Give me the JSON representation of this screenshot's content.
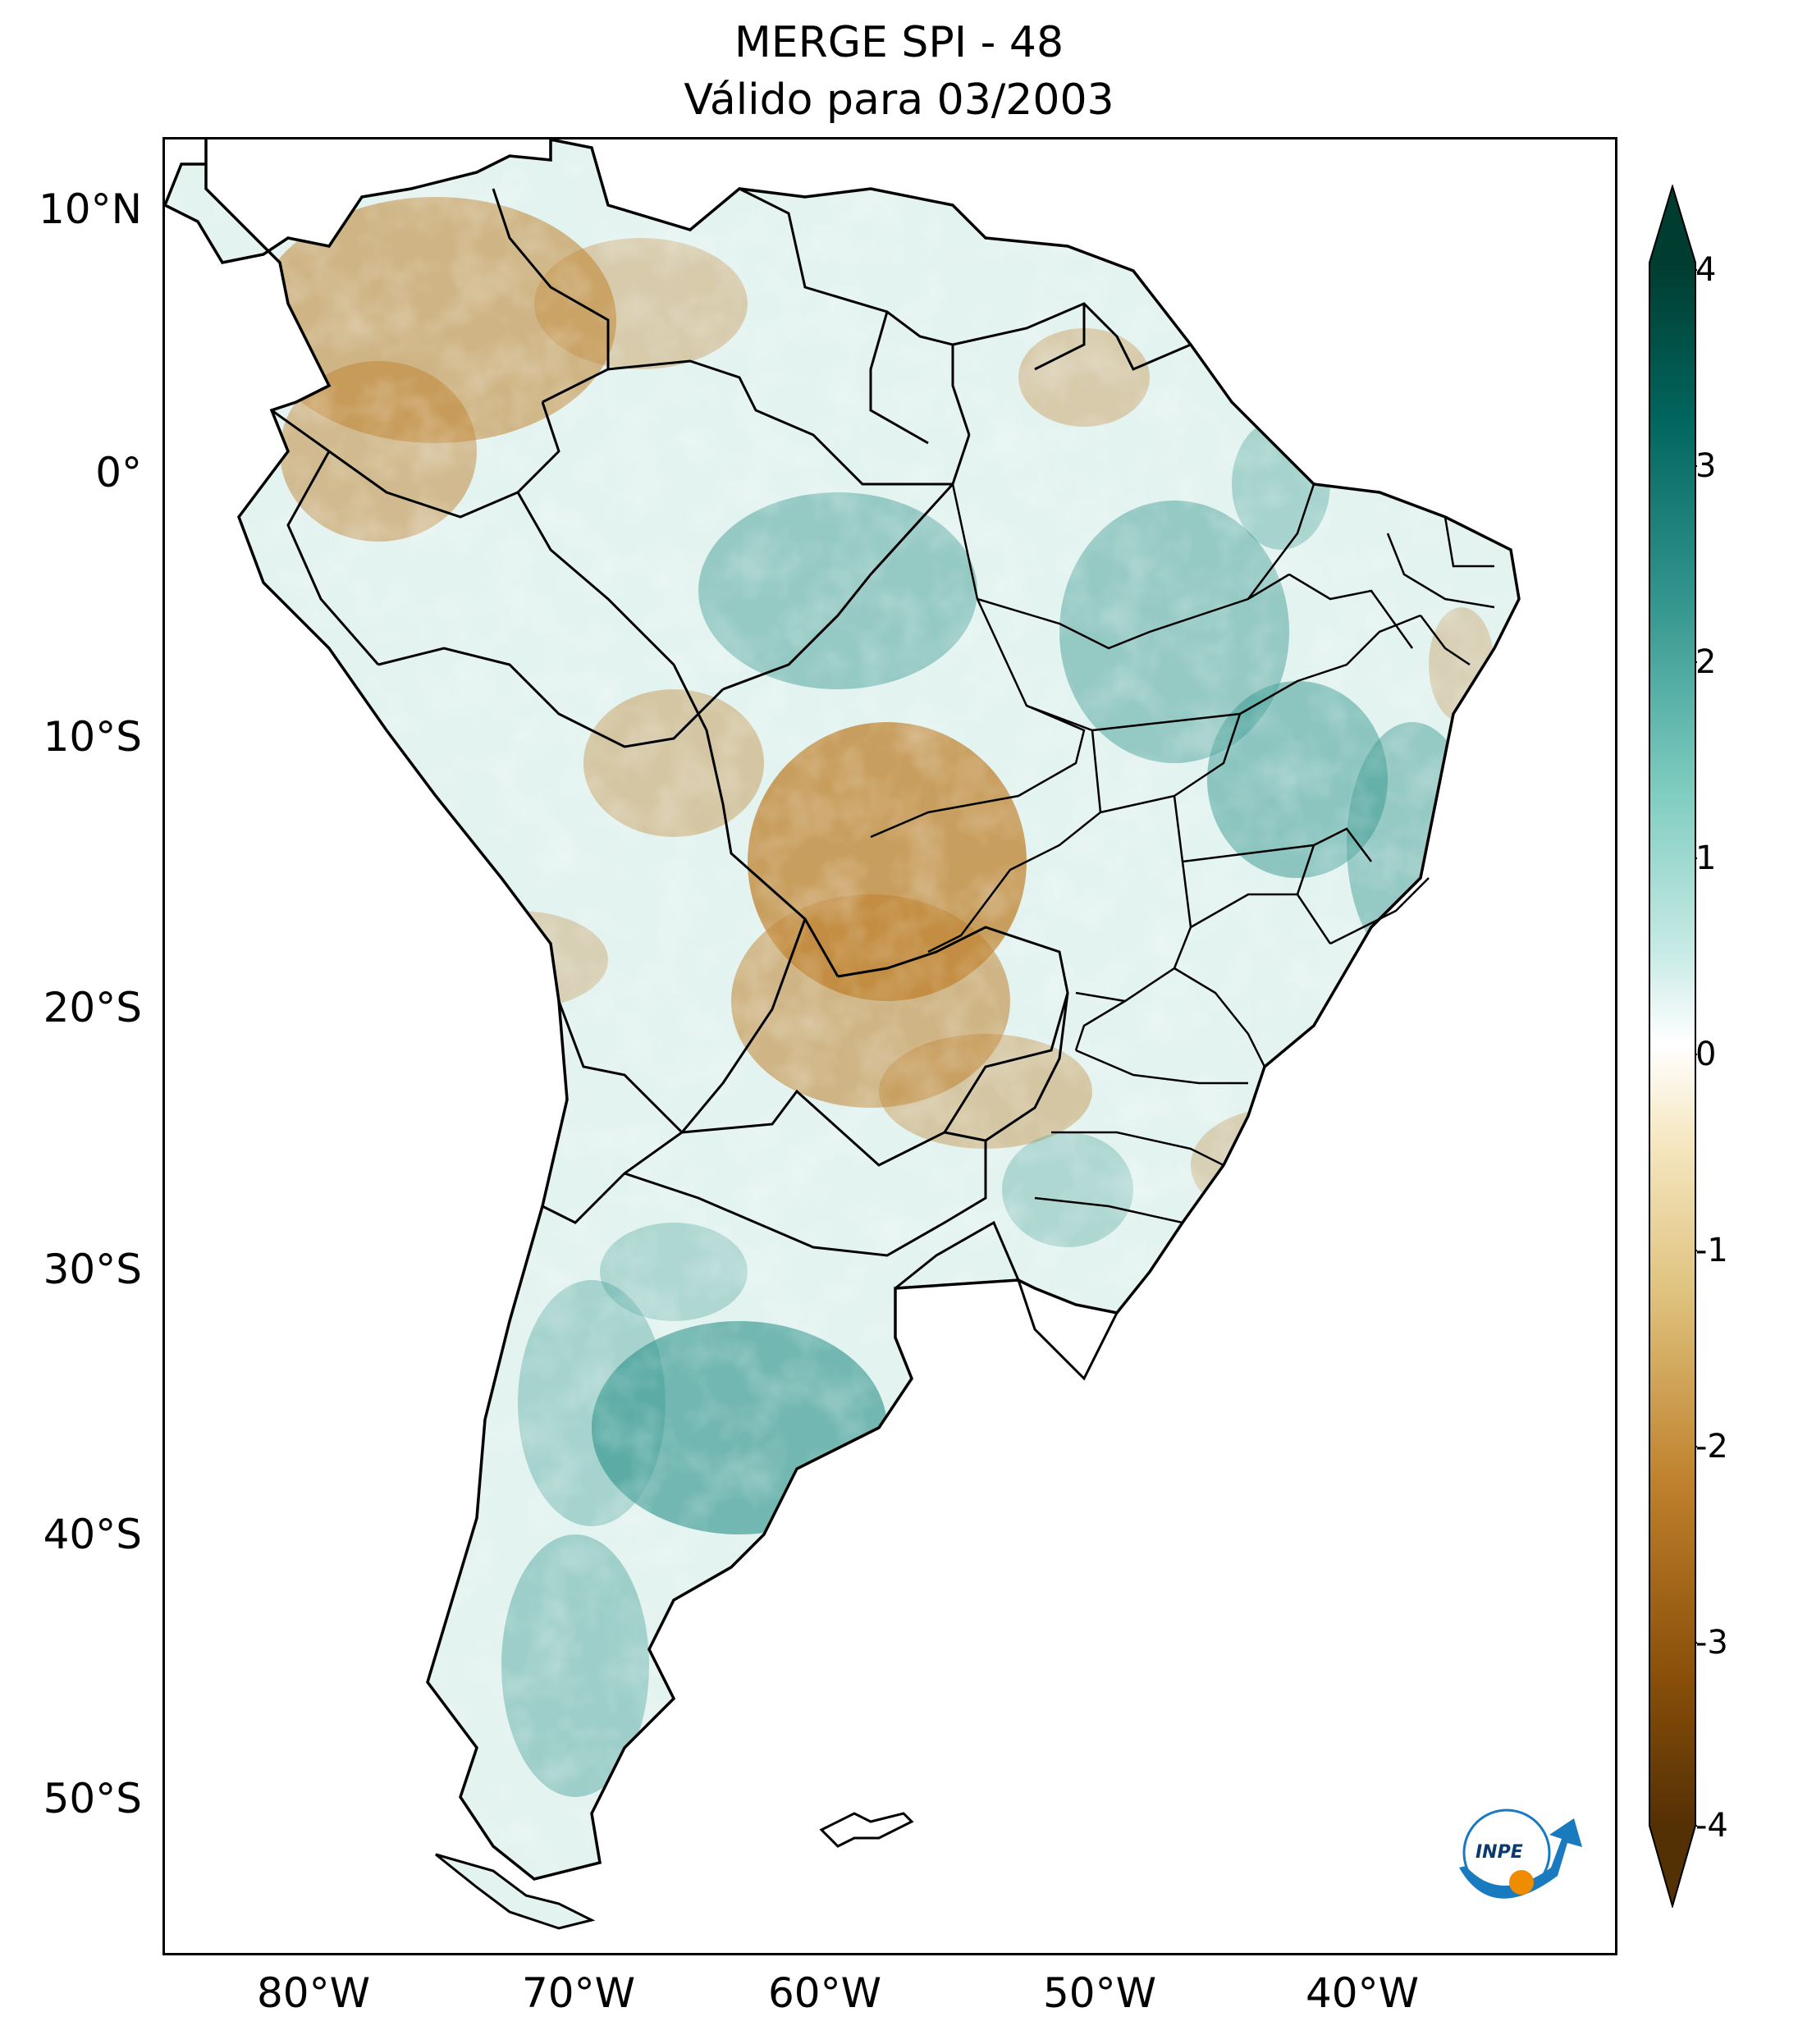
{
  "title": {
    "line1": "MERGE   SPI - 48",
    "line2": "Válido para 03/2003"
  },
  "axes": {
    "lat_labels": [
      "10°N",
      "0°",
      "10°S",
      "20°S",
      "30°S",
      "40°S",
      "50°S"
    ],
    "lon_labels": [
      "80°W",
      "70°W",
      "60°W",
      "50°W",
      "40°W"
    ]
  },
  "colorbar": {
    "ticks": [
      "4",
      "3",
      "2",
      "1",
      "0",
      "-1",
      "-2",
      "-3",
      "-4"
    ],
    "min": -4,
    "max": 4,
    "extend": "both",
    "colormap": [
      "#543005",
      "#8c510a",
      "#bf812d",
      "#dfc27d",
      "#f6e8c3",
      "#ffffff",
      "#c7eae5",
      "#80cdc1",
      "#35978f",
      "#01665e",
      "#003c30"
    ]
  },
  "logo": {
    "text": "INPE"
  },
  "colors": {
    "dry": "#bf812d",
    "wet": "#35978f",
    "border": "#000000"
  }
}
